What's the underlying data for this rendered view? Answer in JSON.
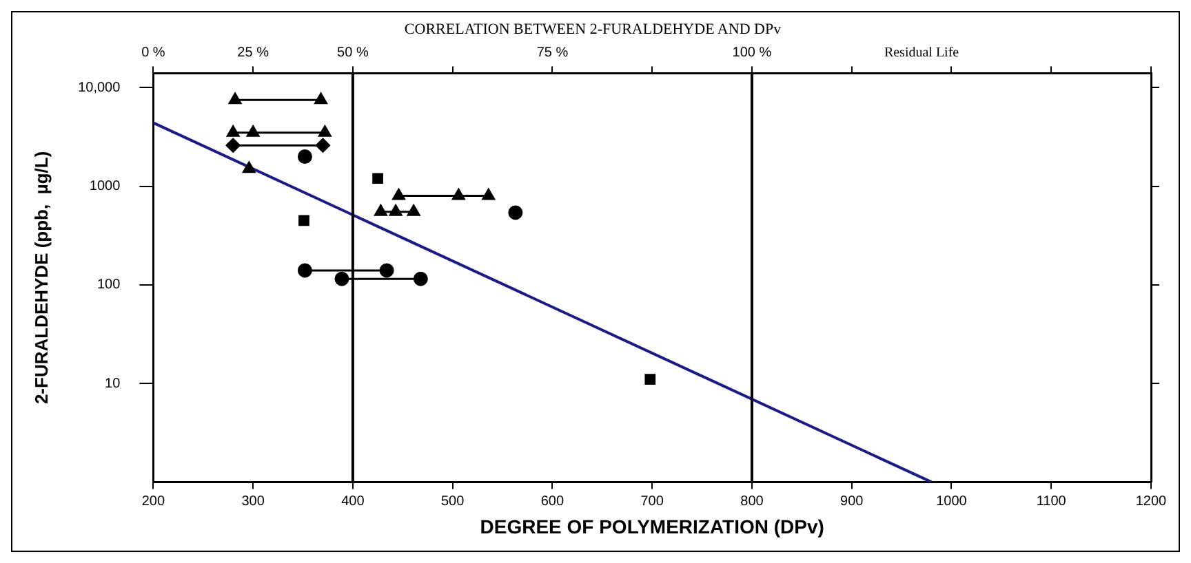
{
  "chart_data": {
    "type": "scatter",
    "title": "CORRELATION BETWEEN 2-FURALDEHYDE AND DPv",
    "xlabel": "DEGREE OF POLYMERIZATION (DPv)",
    "ylabel": "2-FURALDEHYDE (ppb,  µg/L)",
    "annotations": [
      "0 %",
      "25 %",
      "50 %",
      "75 %",
      "100 %",
      "Residual Life"
    ],
    "log": "y",
    "grid": false,
    "legend": false,
    "xlim": [
      200,
      1200
    ],
    "xticks": [
      200,
      300,
      400,
      500,
      600,
      700,
      800,
      900,
      1000,
      1100,
      1200
    ],
    "ylim": [
      1,
      14000
    ],
    "yticks": [
      10,
      100,
      1000,
      {
        "value": 10000,
        "label": "10,000"
      }
    ],
    "ref_lines": [
      {
        "axis": "x",
        "value": 400,
        "color": "#000000"
      },
      {
        "axis": "x",
        "value": 800,
        "color": "#000000"
      }
    ],
    "series": [
      {
        "type": "line",
        "marker": "triangle",
        "color": "#000000",
        "x": [
          282,
          368
        ],
        "values": [
          7500,
          7500
        ]
      },
      {
        "type": "line",
        "marker": "triangle",
        "color": "#000000",
        "x": [
          280,
          300,
          372
        ],
        "values": [
          3500,
          3500,
          3500
        ]
      },
      {
        "type": "line",
        "marker": "diamond",
        "color": "#000000",
        "x": [
          280,
          370
        ],
        "values": [
          2600,
          2600
        ]
      },
      {
        "marker": "circle",
        "color": "#000000",
        "x": [
          352
        ],
        "values": [
          2000
        ]
      },
      {
        "marker": "triangle",
        "color": "#000000",
        "x": [
          296
        ],
        "values": [
          1500
        ]
      },
      {
        "marker": "square",
        "color": "#000000",
        "x": [
          425
        ],
        "values": [
          1200
        ]
      },
      {
        "type": "line",
        "marker": "triangle",
        "color": "#000000",
        "x": [
          446,
          506,
          536
        ],
        "values": [
          800,
          800,
          800
        ]
      },
      {
        "type": "line",
        "marker": "triangle",
        "color": "#000000",
        "x": [
          428,
          443,
          461
        ],
        "values": [
          550,
          550,
          550
        ]
      },
      {
        "marker": "circle",
        "color": "#000000",
        "x": [
          563
        ],
        "values": [
          540
        ]
      },
      {
        "marker": "square",
        "color": "#000000",
        "x": [
          351
        ],
        "values": [
          450
        ]
      },
      {
        "type": "line",
        "marker": "circle",
        "color": "#000000",
        "x": [
          352,
          434
        ],
        "values": [
          140,
          140
        ]
      },
      {
        "type": "line",
        "marker": "circle",
        "color": "#000000",
        "x": [
          389,
          468
        ],
        "values": [
          115,
          115
        ]
      },
      {
        "marker": "square",
        "color": "#000000",
        "x": [
          698
        ],
        "values": [
          11
        ]
      },
      {
        "type": "line",
        "marker": "none",
        "color": "#1a1a8c",
        "x": [
          200,
          980
        ],
        "values": [
          4400,
          1
        ]
      }
    ]
  }
}
